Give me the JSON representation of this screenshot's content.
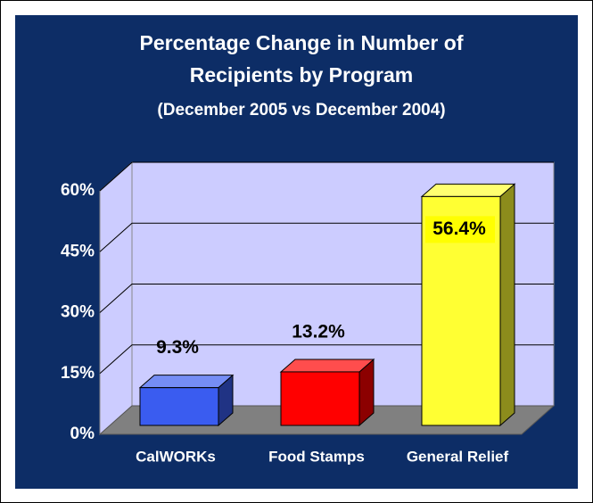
{
  "chart_data": {
    "type": "bar3d",
    "title": "Percentage Change in Number of Recipients by Program",
    "subtitle": "(December 2005 vs December 2004)",
    "categories": [
      "CalWORKs",
      "Food Stamps",
      "General Relief"
    ],
    "values": [
      9.3,
      13.2,
      56.4
    ],
    "value_labels": [
      "9.3%",
      "13.2%",
      "56.4%"
    ],
    "colors": [
      "#3a5cf0",
      "#ff0000",
      "#ffff33"
    ],
    "ylim": [
      0,
      60
    ],
    "yticks": [
      {
        "value": 0,
        "label": "0%"
      },
      {
        "value": 15,
        "label": "15%"
      },
      {
        "value": 30,
        "label": "30%"
      },
      {
        "value": 45,
        "label": "45%"
      },
      {
        "value": 60,
        "label": "60%"
      }
    ],
    "grid": true
  }
}
